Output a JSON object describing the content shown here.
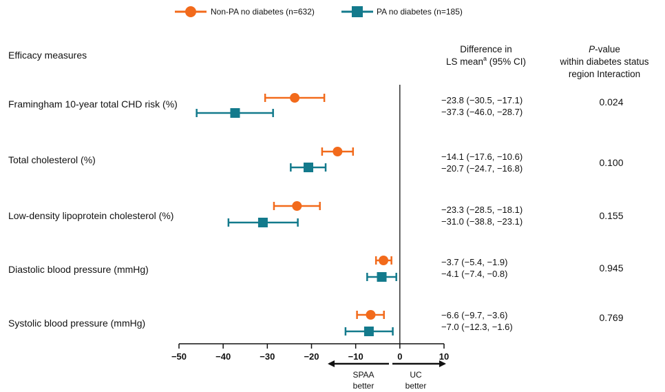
{
  "chart_data": {
    "type": "scatter",
    "subtype": "forest-plot",
    "legend": {
      "placement": "top-center",
      "items": [
        {
          "series": "nonpa",
          "label": "Non-PA no diabetes (n=632)"
        },
        {
          "series": "pa",
          "label": "PA no diabetes (n=185)"
        }
      ]
    },
    "headers": {
      "measures": "Efficacy measures",
      "diff_line1": "Difference in",
      "diff_line2_pre": "LS  mean",
      "diff_line2_sup": "a",
      "diff_line2_post": " (95% CI)",
      "pval_italic": "P",
      "pval_line1_rest": "-value",
      "pval_line2": "within diabetes status",
      "pval_line3": "region Interaction"
    },
    "series": [
      {
        "id": "nonpa",
        "name": "Non-PA no diabetes (n=632)",
        "color": "#F26A1B",
        "marker": "circle"
      },
      {
        "id": "pa",
        "name": "PA no diabetes (n=185)",
        "color": "#137A8C",
        "marker": "square"
      }
    ],
    "rows": [
      {
        "label": "Framingham 10-year total CHD risk (%)",
        "nonpa": {
          "est": -23.8,
          "lo": -30.5,
          "hi": -17.1,
          "text": "−23.8 (−30.5, −17.1)"
        },
        "pa": {
          "est": -37.3,
          "lo": -46.0,
          "hi": -28.7,
          "text": "−37.3 (−46.0, −28.7)"
        },
        "pvalue": "0.024"
      },
      {
        "label": "Total cholesterol (%)",
        "nonpa": {
          "est": -14.1,
          "lo": -17.6,
          "hi": -10.6,
          "text": "−14.1 (−17.6, −10.6)"
        },
        "pa": {
          "est": -20.7,
          "lo": -24.7,
          "hi": -16.8,
          "text": "−20.7 (−24.7, −16.8)"
        },
        "pvalue": "0.100"
      },
      {
        "label": "Low-density lipoprotein cholesterol (%)",
        "nonpa": {
          "est": -23.3,
          "lo": -28.5,
          "hi": -18.1,
          "text": "−23.3 (−28.5, −18.1)"
        },
        "pa": {
          "est": -31.0,
          "lo": -38.8,
          "hi": -23.1,
          "text": "−31.0 (−38.8, −23.1)"
        },
        "pvalue": "0.155"
      },
      {
        "label": "Diastolic blood pressure (mmHg)",
        "nonpa": {
          "est": -3.7,
          "lo": -5.4,
          "hi": -1.9,
          "text": "−3.7 (−5.4, −1.9)"
        },
        "pa": {
          "est": -4.1,
          "lo": -7.4,
          "hi": -0.8,
          "text": "−4.1 (−7.4, −0.8)"
        },
        "pvalue": "0.945"
      },
      {
        "label": "Systolic blood pressure (mmHg)",
        "nonpa": {
          "est": -6.6,
          "lo": -9.7,
          "hi": -3.6,
          "text": "−6.6 (−9.7, −3.6)"
        },
        "pa": {
          "est": -7.0,
          "lo": -12.3,
          "hi": -1.6,
          "text": "−7.0 (−12.3, −1.6)"
        },
        "pvalue": "0.769"
      }
    ],
    "x_axis": {
      "range": [
        -50,
        10
      ],
      "ticks": [
        -50,
        -40,
        -30,
        -20,
        -10,
        0,
        10
      ],
      "tick_labels": [
        "−50",
        "−40",
        "−30",
        "−20",
        "−10",
        "0",
        "10"
      ],
      "reference_line": 0
    },
    "annotations": {
      "left_line1": "SPAA",
      "left_line2": "better",
      "right_line1": "UC",
      "right_line2": "better"
    },
    "grid": false
  }
}
